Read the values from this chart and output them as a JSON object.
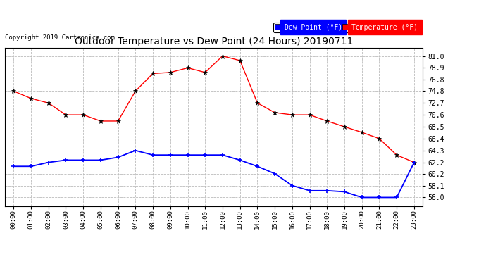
{
  "title": "Outdoor Temperature vs Dew Point (24 Hours) 20190711",
  "copyright": "Copyright 2019 Cartronics.com",
  "hours": [
    "00:00",
    "01:00",
    "02:00",
    "03:00",
    "04:00",
    "05:00",
    "06:00",
    "07:00",
    "08:00",
    "09:00",
    "10:00",
    "11:00",
    "12:00",
    "13:00",
    "14:00",
    "15:00",
    "16:00",
    "17:00",
    "18:00",
    "19:00",
    "20:00",
    "21:00",
    "22:00",
    "23:00"
  ],
  "temperature": [
    74.8,
    73.5,
    72.7,
    70.6,
    70.6,
    69.5,
    69.5,
    74.8,
    77.9,
    78.1,
    78.9,
    78.1,
    81.0,
    80.2,
    72.7,
    71.0,
    70.6,
    70.6,
    69.5,
    68.5,
    67.5,
    66.4,
    63.5,
    62.2
  ],
  "dew_point": [
    61.5,
    61.5,
    62.2,
    62.6,
    62.6,
    62.6,
    63.1,
    64.3,
    63.5,
    63.5,
    63.5,
    63.5,
    63.5,
    62.6,
    61.5,
    60.2,
    58.1,
    57.2,
    57.2,
    57.0,
    56.0,
    56.0,
    56.0,
    62.2
  ],
  "temp_color": "#ff0000",
  "dew_color": "#0000ff",
  "background_color": "#ffffff",
  "plot_bg_color": "#ffffff",
  "grid_color": "#bbbbbb",
  "ylim_min": 54.5,
  "ylim_max": 82.5,
  "yticks": [
    56.0,
    58.1,
    60.2,
    62.2,
    64.3,
    66.4,
    68.5,
    70.6,
    72.7,
    74.8,
    76.8,
    78.9,
    81.0
  ],
  "legend_dew_label": "Dew Point (°F)",
  "legend_temp_label": "Temperature (°F)"
}
